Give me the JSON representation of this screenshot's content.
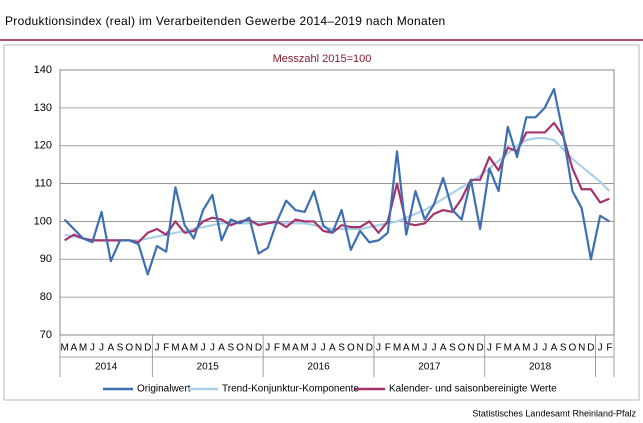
{
  "chart_data": {
    "type": "line",
    "title": "Produktionsindex (real) im Verarbeitenden Gewerbe 2014–2019 nach Monaten",
    "subtitle": "Messzahl 2015=100",
    "source": "Statistisches Landesamt Rheinland-Pfalz",
    "categories": [
      "M",
      "A",
      "M",
      "J",
      "J",
      "A",
      "S",
      "O",
      "N",
      "D",
      "J",
      "F",
      "M",
      "A",
      "M",
      "J",
      "J",
      "A",
      "S",
      "O",
      "N",
      "D",
      "J",
      "F",
      "M",
      "A",
      "M",
      "J",
      "J",
      "A",
      "S",
      "O",
      "N",
      "D",
      "J",
      "F",
      "M",
      "A",
      "M",
      "J",
      "J",
      "A",
      "S",
      "O",
      "N",
      "D",
      "J",
      "F",
      "M",
      "A",
      "M",
      "J",
      "J",
      "A",
      "S",
      "O",
      "N",
      "D",
      "J",
      "F"
    ],
    "years": [
      "2014",
      "2014",
      "2014",
      "2014",
      "2014",
      "2014",
      "2014",
      "2014",
      "2014",
      "2014",
      "2015",
      "2015",
      "2015",
      "2015",
      "2015",
      "2015",
      "2015",
      "2015",
      "2015",
      "2015",
      "2015",
      "2015",
      "2016",
      "2016",
      "2016",
      "2016",
      "2016",
      "2016",
      "2016",
      "2016",
      "2016",
      "2016",
      "2016",
      "2016",
      "2017",
      "2017",
      "2017",
      "2017",
      "2017",
      "2017",
      "2017",
      "2017",
      "2017",
      "2017",
      "2017",
      "2017",
      "2018",
      "2018",
      "2018",
      "2018",
      "2018",
      "2018",
      "2018",
      "2018",
      "2018",
      "2018",
      "2018",
      "2018",
      null,
      null
    ],
    "series": [
      {
        "name": "Originalwert",
        "color": "#3d6fb1",
        "values": [
          100.5,
          98,
          95.5,
          94.5,
          102.5,
          89.5,
          95,
          95,
          94,
          86,
          93.5,
          92,
          109,
          99,
          95.5,
          103,
          107,
          95,
          100.5,
          99.5,
          101,
          91.5,
          93,
          100,
          105.5,
          103,
          102.5,
          108,
          99,
          97,
          103,
          92.5,
          97.5,
          94.5,
          95,
          97,
          118.5,
          96.5,
          108,
          100.5,
          104.5,
          111.5,
          103,
          100.5,
          111,
          98,
          114,
          108,
          125,
          117,
          127.5,
          127.5,
          130,
          135,
          123,
          108,
          103.5,
          90,
          101.5,
          100
        ]
      },
      {
        "name": "Trend-Konjunktur-Komponente",
        "color": "#a9d0e8",
        "values": [
          96.5,
          96,
          95.5,
          95,
          95,
          95,
          95,
          95,
          95,
          95.5,
          96,
          96.5,
          97,
          97.5,
          98,
          98.5,
          99,
          99.5,
          99.5,
          99.5,
          99.5,
          99.5,
          99.5,
          99.5,
          99.5,
          99.5,
          99.5,
          99,
          98.5,
          98,
          98,
          98,
          98,
          98.5,
          99,
          99.5,
          100,
          101,
          102,
          103,
          104.5,
          106,
          107.5,
          109,
          110.5,
          112,
          114,
          116,
          118,
          120,
          121.5,
          122,
          122,
          121.5,
          119,
          116.5,
          114.5,
          112.5,
          110.5,
          108
        ]
      },
      {
        "name": "Kalender- und saisonbereinigte Werte",
        "color": "#a4336e",
        "values": [
          95,
          96.5,
          95.5,
          95,
          95,
          95,
          95,
          95,
          94.5,
          97,
          98,
          96.5,
          100,
          97,
          97.5,
          100,
          101,
          100.5,
          99,
          100,
          100.5,
          99,
          99.5,
          100,
          98.5,
          100.5,
          100,
          100,
          97.5,
          97,
          99,
          98.5,
          98.5,
          100,
          97,
          100,
          110,
          99.5,
          99,
          99.5,
          102,
          103,
          102.5,
          106,
          111,
          111,
          117,
          113.5,
          119.5,
          118.5,
          123.5,
          123.5,
          123.5,
          126,
          122.5,
          114,
          108.5,
          108.5,
          105,
          106
        ]
      }
    ],
    "ylim": [
      70,
      140
    ],
    "yticks": [
      70,
      80,
      90,
      100,
      110,
      120,
      130,
      140
    ],
    "grid": true
  }
}
